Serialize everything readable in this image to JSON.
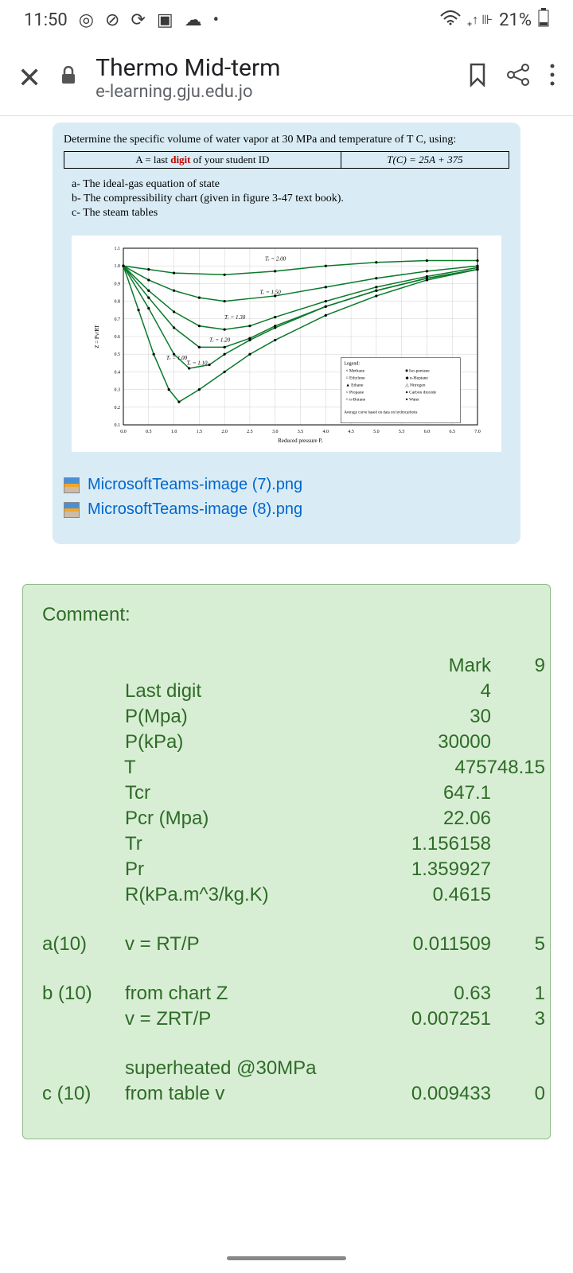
{
  "status": {
    "time": "11:50",
    "battery": "21%"
  },
  "browser": {
    "title": "Thermo Mid-term",
    "url": "e-learning.gju.edu.jo"
  },
  "question": {
    "prompt": "Determine the specific volume of water vapor at 30 MPa and temperature of T C, using:",
    "formula_left_pre": "A = last ",
    "formula_left_red": "digit",
    "formula_left_post": " of your student ID",
    "formula_right": "T(C) = 25A + 375",
    "items": [
      "a-  The ideal-gas equation of state",
      "b-  The compressibility chart (given in figure 3-47 text book).",
      "c-  The steam tables"
    ]
  },
  "chart": {
    "ylabel": "Z = Pv/RT",
    "xlabel": "Reduced pressure Pᵣ",
    "axis_color": "#000000",
    "grid_color": "#cfcfcf",
    "curve_color": "#0a7a2a",
    "marker_color": "#000000",
    "background_color": "#ffffff",
    "xlim": [
      0,
      7.0
    ],
    "ylim": [
      0.1,
      1.1
    ],
    "xticks": [
      0,
      0.5,
      1.0,
      1.5,
      2.0,
      2.5,
      3.0,
      3.5,
      4.0,
      4.5,
      5.0,
      5.5,
      6.0,
      6.5,
      7.0
    ],
    "yticks": [
      0.1,
      0.2,
      0.3,
      0.4,
      0.5,
      0.6,
      0.7,
      0.8,
      0.9,
      1.0,
      1.1
    ],
    "curve_labels": [
      "Tᵣ = 2.00",
      "Tᵣ = 1.50",
      "Tᵣ = 1.30",
      "Tᵣ = 1.20",
      "Tᵣ = 1.10",
      "Tᵣ = 1.00"
    ],
    "curves": {
      "Tr2.00": [
        [
          0,
          1.0
        ],
        [
          0.5,
          0.98
        ],
        [
          1.0,
          0.96
        ],
        [
          2.0,
          0.95
        ],
        [
          3.0,
          0.97
        ],
        [
          4.0,
          1.0
        ],
        [
          5.0,
          1.02
        ],
        [
          6.0,
          1.03
        ],
        [
          7.0,
          1.03
        ]
      ],
      "Tr1.50": [
        [
          0,
          1.0
        ],
        [
          0.5,
          0.92
        ],
        [
          1.0,
          0.86
        ],
        [
          1.5,
          0.82
        ],
        [
          2.0,
          0.8
        ],
        [
          3.0,
          0.83
        ],
        [
          4.0,
          0.88
        ],
        [
          5.0,
          0.93
        ],
        [
          6.0,
          0.97
        ],
        [
          7.0,
          1.0
        ]
      ],
      "Tr1.30": [
        [
          0,
          1.0
        ],
        [
          0.5,
          0.86
        ],
        [
          1.0,
          0.74
        ],
        [
          1.5,
          0.66
        ],
        [
          2.0,
          0.64
        ],
        [
          2.5,
          0.66
        ],
        [
          3.0,
          0.71
        ],
        [
          4.0,
          0.8
        ],
        [
          5.0,
          0.88
        ],
        [
          6.0,
          0.94
        ],
        [
          7.0,
          0.99
        ]
      ],
      "Tr1.20": [
        [
          0,
          1.0
        ],
        [
          0.5,
          0.82
        ],
        [
          1.0,
          0.65
        ],
        [
          1.5,
          0.54
        ],
        [
          2.0,
          0.54
        ],
        [
          2.5,
          0.59
        ],
        [
          3.0,
          0.66
        ],
        [
          4.0,
          0.77
        ],
        [
          5.0,
          0.86
        ],
        [
          6.0,
          0.93
        ],
        [
          7.0,
          0.98
        ]
      ],
      "Tr1.10": [
        [
          0,
          1.0
        ],
        [
          0.5,
          0.76
        ],
        [
          1.0,
          0.5
        ],
        [
          1.3,
          0.42
        ],
        [
          1.7,
          0.44
        ],
        [
          2.0,
          0.5
        ],
        [
          2.5,
          0.58
        ],
        [
          3.0,
          0.65
        ],
        [
          4.0,
          0.77
        ],
        [
          5.0,
          0.86
        ],
        [
          6.0,
          0.93
        ],
        [
          7.0,
          0.98
        ]
      ],
      "Tr1.00": [
        [
          0,
          1.0
        ],
        [
          0.3,
          0.75
        ],
        [
          0.6,
          0.5
        ],
        [
          0.9,
          0.3
        ],
        [
          1.1,
          0.23
        ],
        [
          1.5,
          0.3
        ],
        [
          2.0,
          0.4
        ],
        [
          2.5,
          0.5
        ],
        [
          3.0,
          0.58
        ],
        [
          4.0,
          0.72
        ],
        [
          5.0,
          0.83
        ],
        [
          6.0,
          0.92
        ],
        [
          7.0,
          0.98
        ]
      ]
    },
    "legend_title": "Legend:",
    "legend_items": [
      "× Methane",
      "○ Ethylene",
      "▲ Ethane",
      "○ Propane",
      "○ n-Butane",
      "■ Iso-pentane",
      "◆ n-Heptane",
      "△ Nitrogen",
      "● Carbon dioxide",
      "● Water"
    ],
    "legend_footer": "Average curve based on data on hydrocarbons"
  },
  "attachments": [
    "MicrosoftTeams-image (7).png",
    "MicrosoftTeams-image (8).png"
  ],
  "comment": {
    "title": "Comment:",
    "header_value": "Mark",
    "header_mark": "9",
    "rows": [
      {
        "label": "",
        "param": "Last digit",
        "value": "4",
        "mark": ""
      },
      {
        "label": "",
        "param": "P(Mpa)",
        "value": "30",
        "mark": ""
      },
      {
        "label": "",
        "param": "P(kPa)",
        "value": "30000",
        "mark": ""
      },
      {
        "label": "",
        "param": "T",
        "value": "475",
        "mark": "748.15"
      },
      {
        "label": "",
        "param": "Tcr",
        "value": "647.1",
        "mark": ""
      },
      {
        "label": "",
        "param": "Pcr (Mpa)",
        "value": "22.06",
        "mark": ""
      },
      {
        "label": "",
        "param": "Tr",
        "value": "1.156158",
        "mark": ""
      },
      {
        "label": "",
        "param": "Pr",
        "value": "1.359927",
        "mark": ""
      },
      {
        "label": "",
        "param": "R(kPa.m^3/kg.K)",
        "value": "0.4615",
        "mark": ""
      }
    ],
    "section_a": {
      "label": "a(10)",
      "param": "v = RT/P",
      "value": "0.011509",
      "mark": "5"
    },
    "section_b": [
      {
        "label": "b (10)",
        "param": "from chart Z",
        "value": "0.63",
        "mark": "1"
      },
      {
        "label": "",
        "param": "v = ZRT/P",
        "value": "0.007251",
        "mark": "3"
      }
    ],
    "section_c": [
      {
        "label": "",
        "param": "superheated @30MPa",
        "value": "",
        "mark": ""
      },
      {
        "label": "c (10)",
        "param": "from table v",
        "value": "0.009433",
        "mark": "0"
      }
    ]
  }
}
